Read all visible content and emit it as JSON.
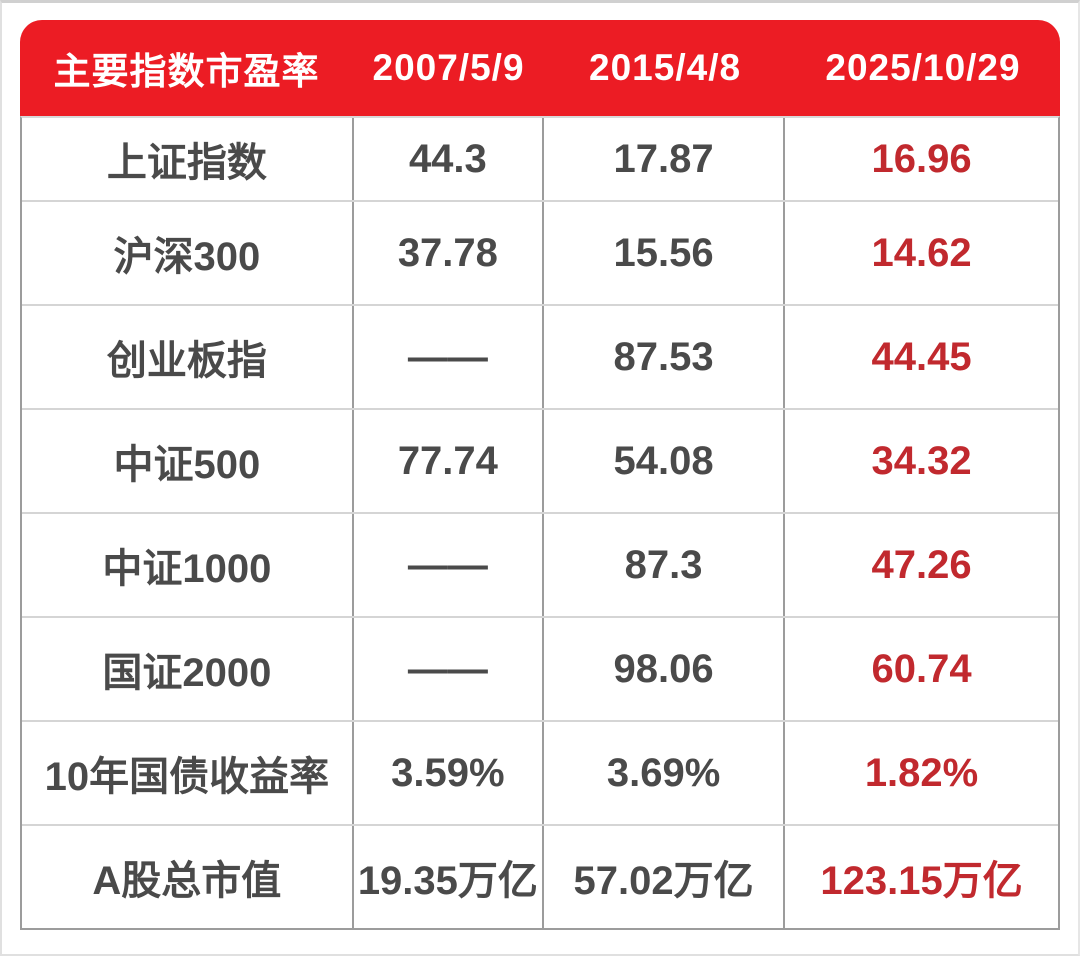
{
  "table": {
    "header": {
      "title": "主要指数市盈率",
      "dates": [
        "2007/5/9",
        "2015/4/8",
        "2025/10/29"
      ]
    },
    "rows": [
      {
        "label": "上证指数",
        "values": [
          "44.3",
          "17.87",
          "16.96"
        ]
      },
      {
        "label": "沪深300",
        "values": [
          "37.78",
          "15.56",
          "14.62"
        ]
      },
      {
        "label": "创业板指",
        "values": [
          "——",
          "87.53",
          "44.45"
        ]
      },
      {
        "label": "中证500",
        "values": [
          "77.74",
          "54.08",
          "34.32"
        ]
      },
      {
        "label": "中证1000",
        "values": [
          "——",
          "87.3",
          "47.26"
        ]
      },
      {
        "label": "国证2000",
        "values": [
          "——",
          "98.06",
          "60.74"
        ]
      },
      {
        "label": "10年国债收益率",
        "values": [
          "3.59%",
          "3.69%",
          "1.82%"
        ]
      },
      {
        "label": "A股总市值",
        "values": [
          "19.35万亿",
          "57.02万亿",
          "123.15万亿"
        ]
      }
    ]
  },
  "colors": {
    "header_background": "#EC1C24",
    "header_text": "#FFFFFF",
    "body_text": "#4A4A4A",
    "highlight_column_text": "#C1292E",
    "vertical_grid": "#9C9C9C",
    "horizontal_grid": "#D5D5D5"
  },
  "chart_data": {
    "type": "table",
    "title": "主要指数市盈率",
    "columns": [
      "主要指数市盈率",
      "2007/5/9",
      "2015/4/8",
      "2025/10/29"
    ],
    "rows": [
      [
        "上证指数",
        "44.3",
        "17.87",
        "16.96"
      ],
      [
        "沪深300",
        "37.78",
        "15.56",
        "14.62"
      ],
      [
        "创业板指",
        "——",
        "87.53",
        "44.45"
      ],
      [
        "中证500",
        "77.74",
        "54.08",
        "34.32"
      ],
      [
        "中证1000",
        "——",
        "87.3",
        "47.26"
      ],
      [
        "国证2000",
        "——",
        "98.06",
        "60.74"
      ],
      [
        "10年国债收益率",
        "3.59%",
        "3.69%",
        "1.82%"
      ],
      [
        "A股总市值",
        "19.35万亿",
        "57.02万亿",
        "123.15万亿"
      ]
    ],
    "layout_hints": {
      "highlight_column": "2025/10/29",
      "highlight_color": "#C1292E",
      "header_style": "red-background-white-text-rounded-top",
      "grid": "on"
    }
  }
}
